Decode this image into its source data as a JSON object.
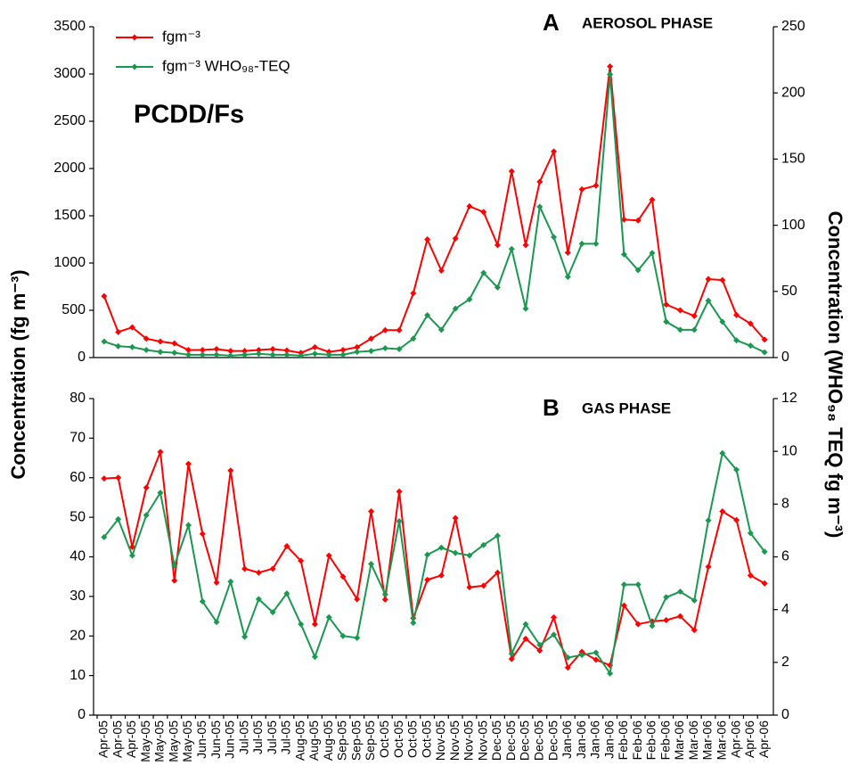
{
  "chart_data": [
    {
      "type": "line",
      "title": "AEROSOL PHASE",
      "panel_label": "A",
      "annotation": "PCDD/Fs",
      "ylabel": "Concentration (fg m⁻³)",
      "y2label": "Concentration (WHO₉₈ TEQ fg m⁻³)",
      "ylim": [
        0,
        3500
      ],
      "yticks": [
        0,
        500,
        1000,
        1500,
        2000,
        2500,
        3000,
        3500
      ],
      "y2lim": [
        0,
        250
      ],
      "y2ticks": [
        0,
        50,
        100,
        150,
        200,
        250
      ],
      "legend": "upper left",
      "series": [
        {
          "name": "fgm⁻³",
          "color": "#ff0000",
          "values": [
            650,
            270,
            320,
            200,
            170,
            150,
            80,
            80,
            90,
            70,
            70,
            80,
            90,
            75,
            50,
            110,
            60,
            80,
            110,
            200,
            290,
            290,
            680,
            1250,
            920,
            1260,
            1600,
            1540,
            1190,
            1970,
            1190,
            1860,
            2180,
            1110,
            1780,
            1820,
            3080,
            1460,
            1450,
            1670,
            560,
            500,
            440,
            830,
            820,
            450,
            360,
            190
          ]
        },
        {
          "name": "fgm⁻³ WHO₉₈-TEQ",
          "color": "#1a9850",
          "axis": "y2",
          "values": [
            12.1,
            8.6,
            7.9,
            5.7,
            4.3,
            3.6,
            2.1,
            2.1,
            2.1,
            1.4,
            2.1,
            2.9,
            2.1,
            2.1,
            1.4,
            2.9,
            2.1,
            2.1,
            4.3,
            5,
            7.1,
            6.4,
            14.3,
            32,
            21,
            37,
            44,
            64,
            53,
            82,
            37,
            114,
            91,
            61,
            86,
            86,
            214,
            78,
            66,
            79,
            27,
            21,
            21,
            43,
            27,
            13,
            9,
            4
          ]
        }
      ]
    },
    {
      "type": "line",
      "title": "GAS PHASE",
      "panel_label": "B",
      "categories": [
        "Apr-05",
        "Apr-05",
        "Apr-05",
        "May-05",
        "May-05",
        "May-05",
        "May-05",
        "Jun-05",
        "Jun-05",
        "Jun-05",
        "Jul-05",
        "Jul-05",
        "Jul-05",
        "Jul-05",
        "Aug-05",
        "Aug-05",
        "Aug-05",
        "Sep-05",
        "Sep-05",
        "Sep-05",
        "Oct-05",
        "Oct-05",
        "Oct-05",
        "Oct-05",
        "Nov-05",
        "Nov-05",
        "Nov-05",
        "Nov-05",
        "Dec-05",
        "Dec-05",
        "Dec-05",
        "Dec-05",
        "Dec-05",
        "Jan-06",
        "Jan-06",
        "Jan-06",
        "Jan-06",
        "Feb-06",
        "Feb-06",
        "Feb-06",
        "Feb-06",
        "Mar-06",
        "Mar-06",
        "Mar-06",
        "Mar-06",
        "Apr-06",
        "Apr-06",
        "Apr-06"
      ],
      "ylim": [
        0,
        80
      ],
      "yticks": [
        0,
        10,
        20,
        30,
        40,
        50,
        60,
        70,
        80
      ],
      "y2lim": [
        0,
        12
      ],
      "y2ticks": [
        0,
        2,
        4,
        6,
        8,
        10,
        12
      ],
      "series": [
        {
          "color": "#ff0000",
          "values": [
            59.8,
            60,
            42.5,
            57.5,
            66.5,
            34,
            63.5,
            45.8,
            33.5,
            61.8,
            37,
            36,
            37,
            42.7,
            39,
            23,
            40.3,
            35,
            29.3,
            51.5,
            29.2,
            56.5,
            24.5,
            34.2,
            35.3,
            49.8,
            32.3,
            32.7,
            36,
            14.2,
            19.3,
            16.3,
            24.7,
            12,
            16,
            14,
            12.6,
            27.7,
            23,
            23.7,
            24,
            25,
            21.5,
            37.5,
            51.5,
            49.3,
            35.3,
            33.3
          ]
        },
        {
          "color": "#1a9850",
          "axis": "y2",
          "values": [
            6.75,
            7.43,
            6.05,
            7.58,
            8.43,
            5.67,
            7.2,
            4.31,
            3.53,
            5.06,
            2.97,
            4.4,
            3.9,
            4.61,
            3.45,
            2.21,
            3.71,
            3,
            2.93,
            5.73,
            4.58,
            7.35,
            3.5,
            6.08,
            6.35,
            6.15,
            6.05,
            6.45,
            6.8,
            2.33,
            3.45,
            2.66,
            3.05,
            2.18,
            2.28,
            2.37,
            1.58,
            4.95,
            4.95,
            3.38,
            4.47,
            4.68,
            4.35,
            7.38,
            9.93,
            9.3,
            6.9,
            6.2
          ]
        }
      ]
    }
  ]
}
